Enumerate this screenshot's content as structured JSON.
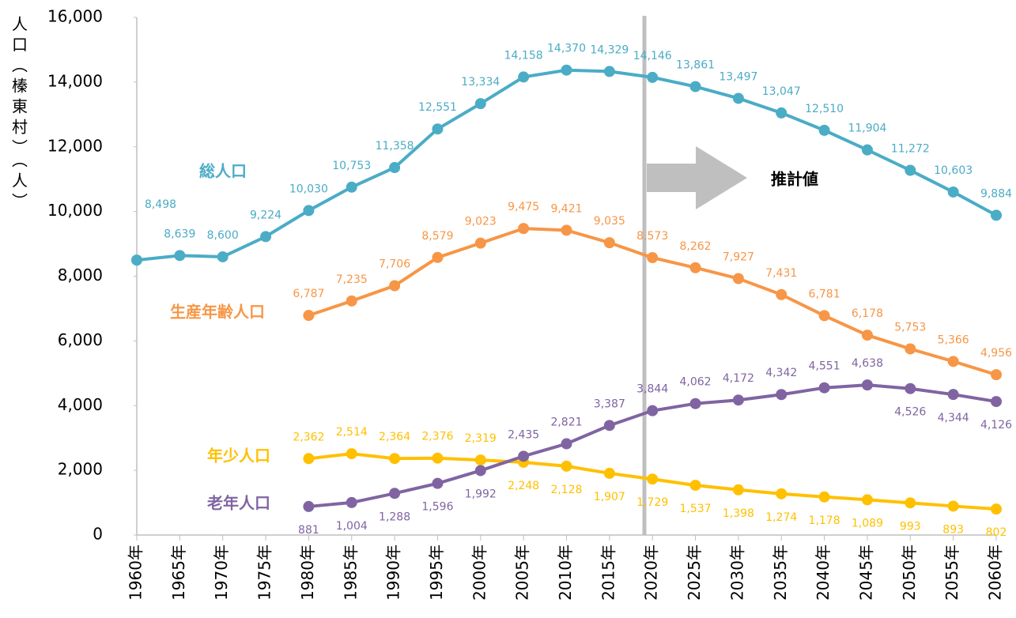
{
  "chart_data": {
    "type": "line",
    "y_axis_label": "人口（榛東村）（人）",
    "annotation": "推計値",
    "categories": [
      "1960年",
      "1965年",
      "1970年",
      "1975年",
      "1980年",
      "1985年",
      "1990年",
      "1995年",
      "2000年",
      "2005年",
      "2010年",
      "2015年",
      "2020年",
      "2025年",
      "2030年",
      "2035年",
      "2040年",
      "2045年",
      "2050年",
      "2055年",
      "2060年"
    ],
    "series": [
      {
        "name": "総人口",
        "color": "#4bacc6",
        "values": [
          8498,
          8639,
          8600,
          9224,
          10030,
          10753,
          11358,
          12551,
          13334,
          14158,
          14370,
          14329,
          14146,
          13861,
          13497,
          13047,
          12510,
          11904,
          11272,
          10603,
          9884
        ],
        "value_labels": [
          "8,498",
          "8,639",
          "8,600",
          "9,224",
          "10,030",
          "10,753",
          "11,358",
          "12,551",
          "13,334",
          "14,158",
          "14,370",
          "14,329",
          "14,146",
          "13,861",
          "13,497",
          "13,047",
          "12,510",
          "11,904",
          "11,272",
          "10,603",
          "9,884"
        ]
      },
      {
        "name": "生産年齢人口",
        "color": "#f79646",
        "values": [
          null,
          null,
          null,
          null,
          6787,
          7235,
          7706,
          8579,
          9023,
          9475,
          9421,
          9035,
          8573,
          8262,
          7927,
          7431,
          6781,
          6178,
          5753,
          5366,
          4956
        ],
        "value_labels": [
          null,
          null,
          null,
          null,
          "6,787",
          "7,235",
          "7,706",
          "8,579",
          "9,023",
          "9,475",
          "9,421",
          "9,035",
          "8,573",
          "8,262",
          "7,927",
          "7,431",
          "6,781",
          "6,178",
          "5,753",
          "5,366",
          "4,956"
        ]
      },
      {
        "name": "年少人口",
        "color": "#ffc000",
        "values": [
          null,
          null,
          null,
          null,
          2362,
          2514,
          2364,
          2376,
          2319,
          2248,
          2128,
          1907,
          1729,
          1537,
          1398,
          1274,
          1178,
          1089,
          993,
          893,
          802
        ],
        "value_labels": [
          null,
          null,
          null,
          null,
          "2,362",
          "2,514",
          "2,364",
          "2,376",
          "2,319",
          "2,248",
          "2,128",
          "1,907",
          "1,729",
          "1,537",
          "1,398",
          "1,274",
          "1,178",
          "1,089",
          "993",
          "893",
          "802"
        ]
      },
      {
        "name": "老年人口",
        "color": "#8064a2",
        "values": [
          null,
          null,
          null,
          null,
          881,
          1004,
          1288,
          1596,
          1992,
          2435,
          2821,
          3387,
          3844,
          4062,
          4172,
          4342,
          4551,
          4638,
          4526,
          4344,
          4126
        ],
        "value_labels": [
          null,
          null,
          null,
          null,
          "881",
          "1,004",
          "1,288",
          "1,596",
          "1,992",
          "2,435",
          "2,821",
          "3,387",
          "3,844",
          "4,062",
          "4,172",
          "4,342",
          "4,551",
          "4,638",
          "4,526",
          "4,344",
          "4,126"
        ]
      }
    ],
    "ylim": [
      0,
      16000
    ],
    "yticks": [
      0,
      {
        "value": 2000,
        "label": "2,000"
      },
      {
        "value": 4000,
        "label": "4,000"
      },
      {
        "value": 6000,
        "label": "6,000"
      },
      {
        "value": 8000,
        "label": "8,000"
      },
      {
        "value": 10000,
        "label": "10,000"
      },
      {
        "value": 12000,
        "label": "12,000"
      },
      {
        "value": 14000,
        "label": "14,000"
      },
      {
        "value": 16000,
        "label": "16,000"
      }
    ],
    "grid": false
  }
}
